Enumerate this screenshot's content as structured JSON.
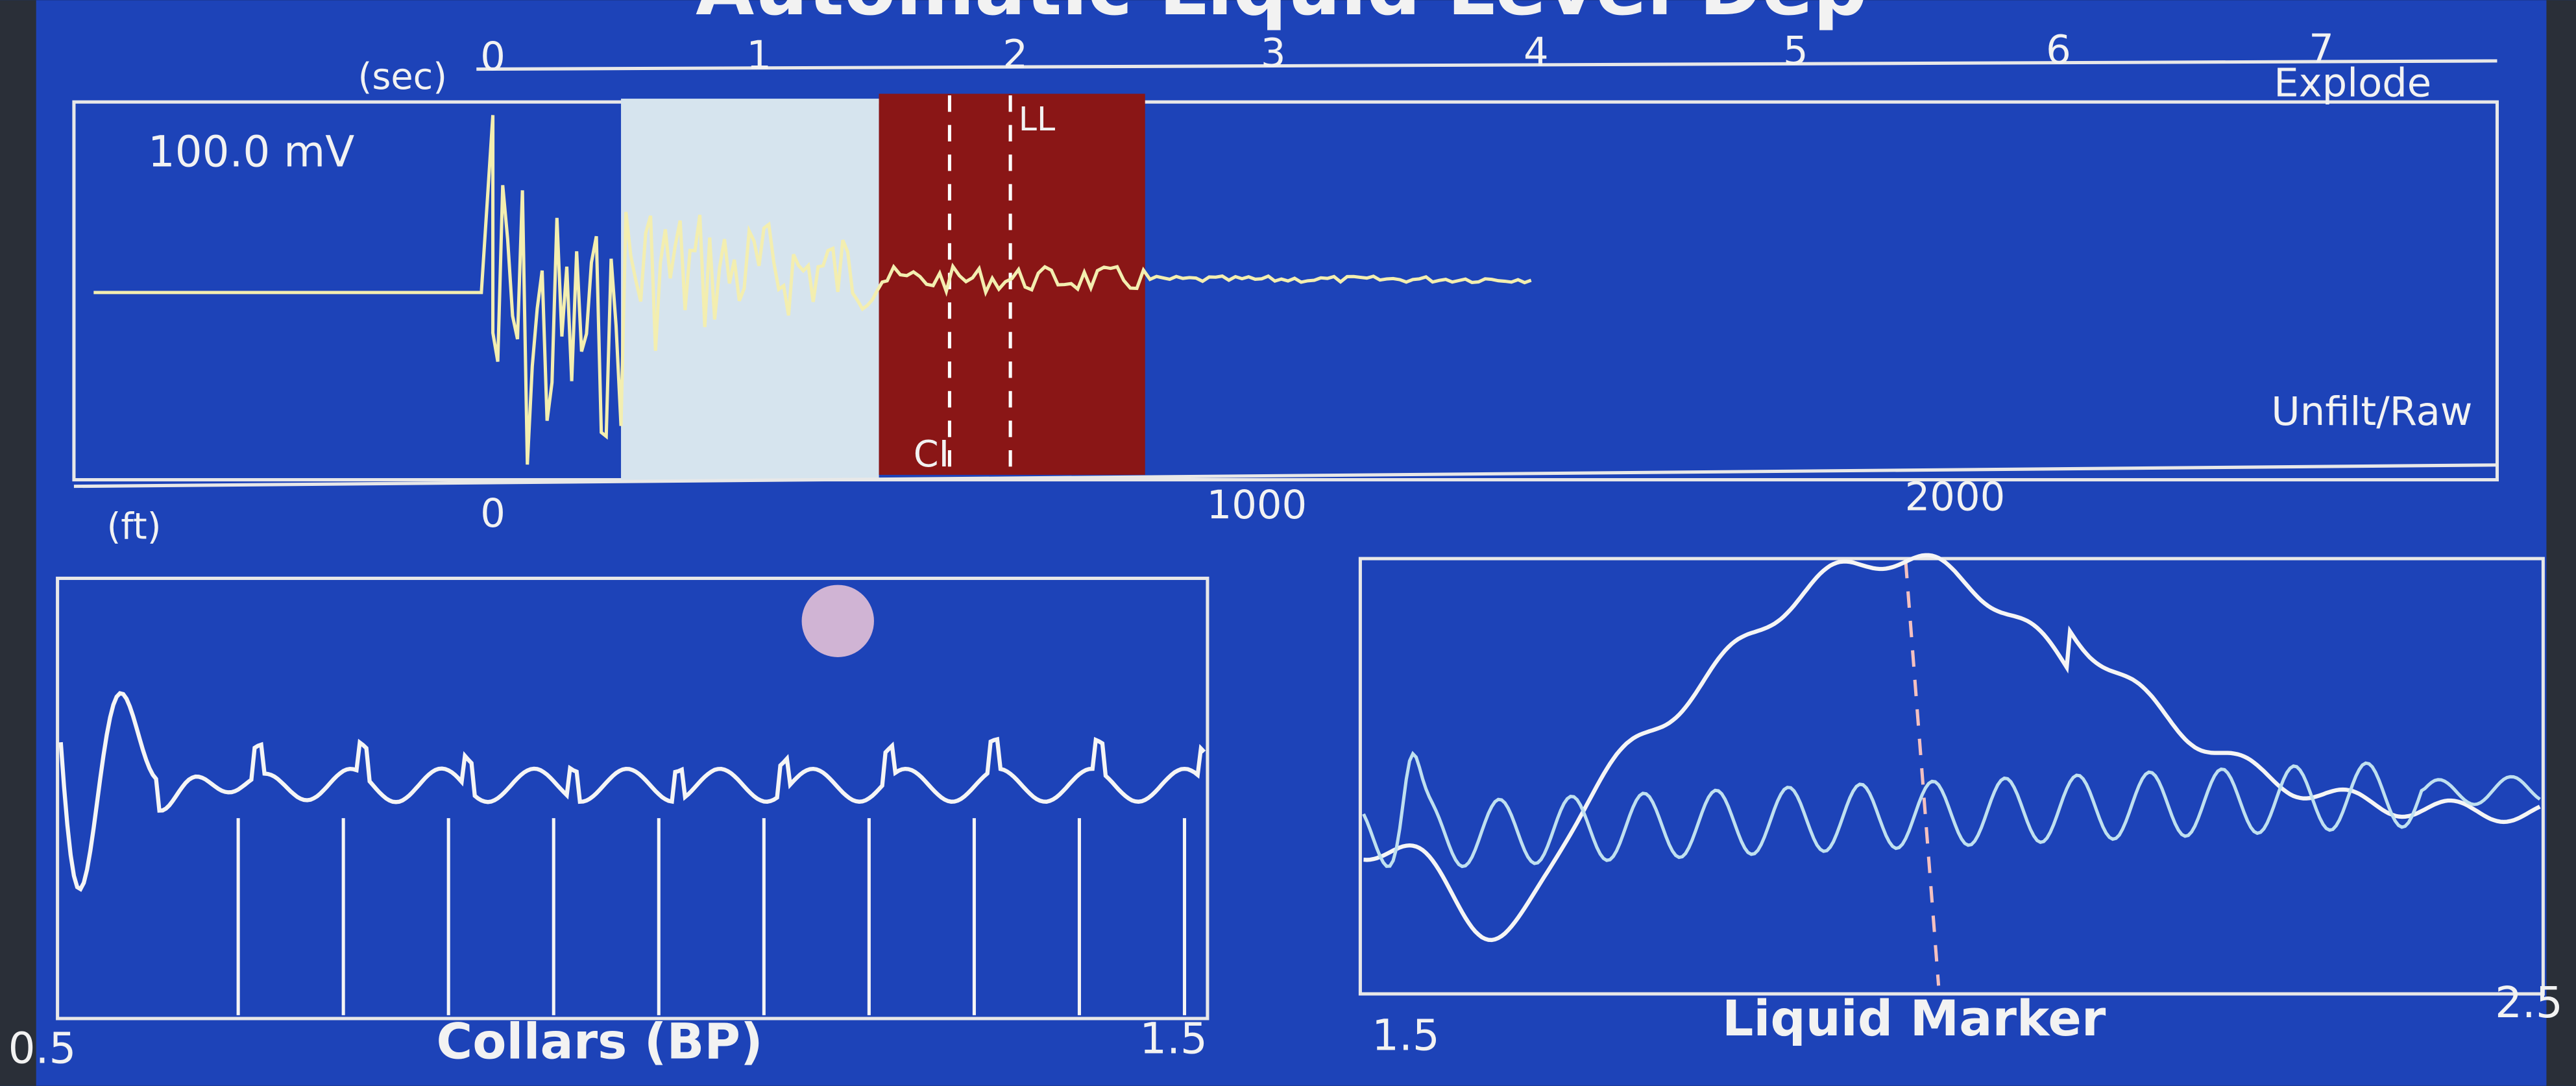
{
  "title": "Automatic Liquid Level Dep",
  "top_panel": {
    "time_unit": "(sec)",
    "time_ticks": [
      "0",
      "1",
      "2",
      "3",
      "4",
      "5",
      "6",
      "7"
    ],
    "mode": "Explode",
    "scale": "100.0 mV",
    "filter": "Unfilt/Raw",
    "markers": [
      "CI",
      "LL"
    ],
    "depth_unit": "(ft)",
    "depth_ticks": [
      "0",
      "1000",
      "2000"
    ]
  },
  "collars_panel": {
    "x_start": "0.5",
    "label": "Collars (BP)",
    "x_end": "1.5"
  },
  "liquid_panel": {
    "x_start": "1.5",
    "label": "Liquid Marker",
    "x_end": "2.5"
  }
}
